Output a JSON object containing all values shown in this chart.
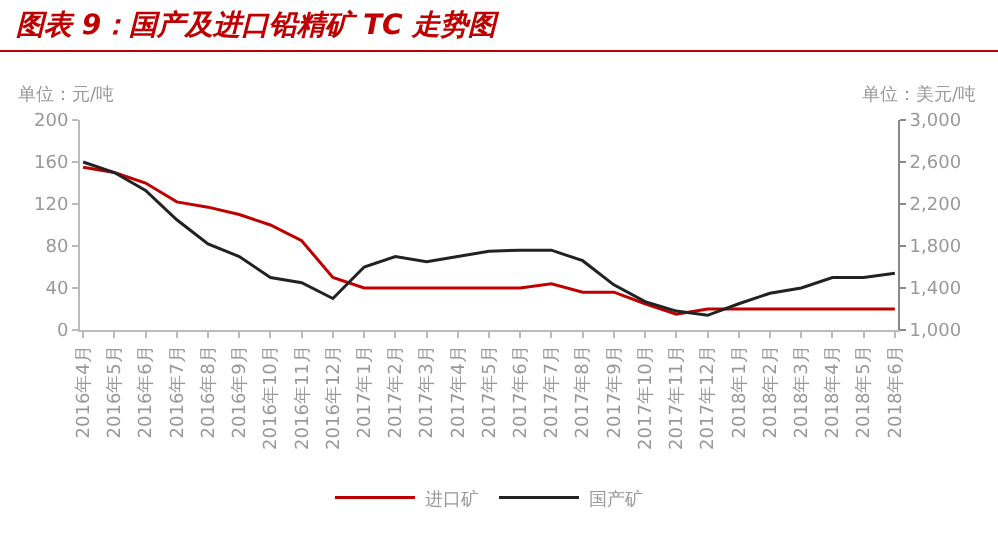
{
  "chart_data": {
    "type": "line",
    "title": "图表 9：国产及进口铅精矿 TC 走势图",
    "ylabel": "单位：元/吨",
    "y2label": "单位：美元/吨",
    "categories": [
      "2016年4月",
      "2016年5月",
      "2016年6月",
      "2016年7月",
      "2016年8月",
      "2016年9月",
      "2016年10月",
      "2016年11月",
      "2016年12月",
      "2017年1月",
      "2017年2月",
      "2017年3月",
      "2017年4月",
      "2017年5月",
      "2017年6月",
      "2017年7月",
      "2017年8月",
      "2017年9月",
      "2017年10月",
      "2017年11月",
      "2017年12月",
      "2018年1月",
      "2018年2月",
      "2018年3月",
      "2018年4月",
      "2018年5月",
      "2018年6月"
    ],
    "series": [
      {
        "name": "进口矿",
        "color": "#c00000",
        "values": [
          155,
          150,
          140,
          122,
          117,
          110,
          100,
          85,
          50,
          40,
          40,
          40,
          40,
          40,
          40,
          44,
          36,
          36,
          25,
          15,
          20,
          20,
          20,
          20,
          20,
          20,
          20
        ]
      },
      {
        "name": "国产矿",
        "color": "#222222",
        "axis": "y2",
        "values": [
          2600,
          2500,
          2330,
          2050,
          1820,
          1700,
          1500,
          1450,
          1300,
          1600,
          1700,
          1650,
          1700,
          1750,
          1760,
          1760,
          1660,
          1430,
          1270,
          1180,
          1140,
          1250,
          1350,
          1400,
          1500,
          1500,
          1540
        ]
      }
    ],
    "ylim": [
      0,
      200
    ],
    "yticks": [
      0,
      40,
      80,
      120,
      160,
      200
    ],
    "y2lim": [
      1000,
      3000
    ],
    "y2ticks": [
      {
        "value": 1000,
        "label": "1,000"
      },
      {
        "value": 1400,
        "label": "1,400"
      },
      {
        "value": 1800,
        "label": "1,800"
      },
      {
        "value": 2200,
        "label": "2,200"
      },
      {
        "value": 2600,
        "label": "2,600"
      },
      {
        "value": 3000,
        "label": "3,000"
      }
    ],
    "grid": false,
    "legend": "bottom",
    "marker": "none",
    "line_style": "solid"
  }
}
